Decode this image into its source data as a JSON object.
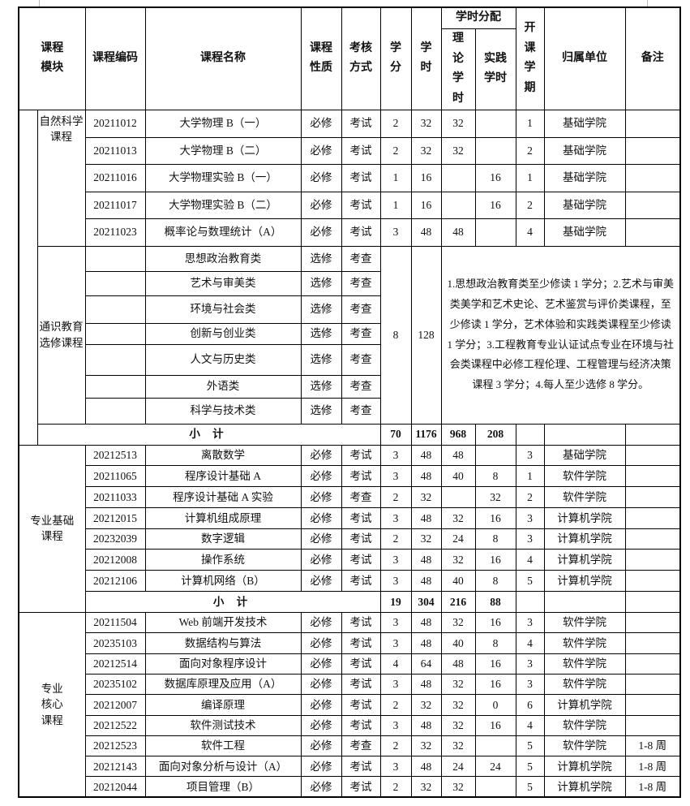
{
  "header": {
    "module": "课程\n模块",
    "code": "课程编码",
    "name": "课程名称",
    "nature": "课程\n性质",
    "exam": "考核\n方式",
    "credit": "学\n分",
    "hours": "学\n时",
    "alloc": "学时分配",
    "theory": "理\n论\n学\n时",
    "practice": "实践\n学时",
    "semester": "开\n课\n学\n期",
    "unit": "归属单位",
    "remark": "备注"
  },
  "columns": [
    "code",
    "name",
    "nature",
    "exam",
    "credit",
    "hours",
    "theory",
    "practice",
    "semester",
    "unit",
    "remark"
  ],
  "sections": [
    {
      "module": "自然科学课程",
      "rows": [
        [
          "20211012",
          "大学物理 B（一）",
          "必修",
          "考试",
          "2",
          "32",
          "32",
          "",
          "1",
          "基础学院",
          ""
        ],
        [
          "20211013",
          "大学物理 B（二）",
          "必修",
          "考试",
          "2",
          "32",
          "32",
          "",
          "2",
          "基础学院",
          ""
        ],
        [
          "20211016",
          "大学物理实验 B（一）",
          "必修",
          "考试",
          "1",
          "16",
          "",
          "16",
          "1",
          "基础学院",
          ""
        ],
        [
          "20211017",
          "大学物理实验 B（二）",
          "必修",
          "考试",
          "1",
          "16",
          "",
          "16",
          "2",
          "基础学院",
          ""
        ],
        [
          "20211023",
          "概率论与数理统计（A）",
          "必修",
          "考试",
          "3",
          "48",
          "48",
          "",
          "4",
          "基础学院",
          ""
        ]
      ]
    },
    {
      "module": "通识教育\n选修课程",
      "credit": "8",
      "hours": "128",
      "note": "1.思想政治教育类至少修读 1 学分；2.艺术与审美类美学和艺术史论、艺术鉴赏与评价类课程，至少修读 1 学分，艺术体验和实践类课程至少修读 1 学分；3.工程教育专业认证试点专业在环境与社会类课程中必修工程伦理、工程管理与经济决策课程 3 学分；4.每人至少选修 8 学分。",
      "rows": [
        [
          "",
          "思想政治教育类",
          "选修",
          "考查"
        ],
        [
          "",
          "艺术与审美类",
          "选修",
          "考查"
        ],
        [
          "",
          "环境与社会类",
          "选修",
          "考查"
        ],
        [
          "",
          "创新与创业类",
          "选修",
          "考查"
        ],
        [
          "",
          "人文与历史类",
          "选修",
          "考查"
        ],
        [
          "",
          "外语类",
          "选修",
          "考查"
        ],
        [
          "",
          "科学与技术类",
          "选修",
          "考查"
        ]
      ],
      "subtotal": {
        "label": "小 计",
        "credit": "70",
        "hours": "1176",
        "theory": "968",
        "practice": "208"
      }
    },
    {
      "module": "专业基础\n课程",
      "rows": [
        [
          "20212513",
          "离散数学",
          "必修",
          "考试",
          "3",
          "48",
          "48",
          "",
          "3",
          "基础学院",
          ""
        ],
        [
          "20211065",
          "程序设计基础 A",
          "必修",
          "考试",
          "3",
          "48",
          "40",
          "8",
          "1",
          "软件学院",
          ""
        ],
        [
          "20211033",
          "程序设计基础 A 实验",
          "必修",
          "考查",
          "2",
          "32",
          "",
          "32",
          "2",
          "软件学院",
          ""
        ],
        [
          "20212015",
          "计算机组成原理",
          "必修",
          "考试",
          "3",
          "48",
          "32",
          "16",
          "3",
          "计算机学院",
          ""
        ],
        [
          "20232039",
          "数字逻辑",
          "必修",
          "考试",
          "2",
          "32",
          "24",
          "8",
          "3",
          "计算机学院",
          ""
        ],
        [
          "20212008",
          "操作系统",
          "必修",
          "考试",
          "3",
          "48",
          "32",
          "16",
          "4",
          "计算机学院",
          ""
        ],
        [
          "20212106",
          "计算机网络（B）",
          "必修",
          "考试",
          "3",
          "48",
          "40",
          "8",
          "5",
          "计算机学院",
          ""
        ]
      ],
      "subtotal": {
        "label": "小 计",
        "credit": "19",
        "hours": "304",
        "theory": "216",
        "practice": "88"
      }
    },
    {
      "module": "专业\n核心\n课程",
      "rows": [
        [
          "20211504",
          "Web 前端开发技术",
          "必修",
          "考试",
          "3",
          "48",
          "32",
          "16",
          "3",
          "软件学院",
          ""
        ],
        [
          "20235103",
          "数据结构与算法",
          "必修",
          "考试",
          "3",
          "48",
          "40",
          "8",
          "4",
          "软件学院",
          ""
        ],
        [
          "20212514",
          "面向对象程序设计",
          "必修",
          "考试",
          "4",
          "64",
          "48",
          "16",
          "3",
          "软件学院",
          ""
        ],
        [
          "20235102",
          "数据库原理及应用（A）",
          "必修",
          "考试",
          "3",
          "48",
          "32",
          "16",
          "3",
          "软件学院",
          ""
        ],
        [
          "20212007",
          "编译原理",
          "必修",
          "考试",
          "2",
          "32",
          "32",
          "0",
          "6",
          "计算机学院",
          ""
        ],
        [
          "20212522",
          "软件测试技术",
          "必修",
          "考试",
          "3",
          "48",
          "32",
          "16",
          "4",
          "软件学院",
          ""
        ],
        [
          "20212523",
          "软件工程",
          "必修",
          "考查",
          "2",
          "32",
          "32",
          "",
          "5",
          "软件学院",
          "1-8 周"
        ],
        [
          "20212143",
          "面向对象分析与设计（A）",
          "必修",
          "考试",
          "3",
          "48",
          "24",
          "24",
          "5",
          "计算机学院",
          "1-8 周"
        ],
        [
          "20212044",
          "项目管理（B）",
          "必修",
          "考试",
          "2",
          "32",
          "32",
          "",
          "5",
          "计算机学院",
          "1-8 周"
        ]
      ]
    }
  ]
}
